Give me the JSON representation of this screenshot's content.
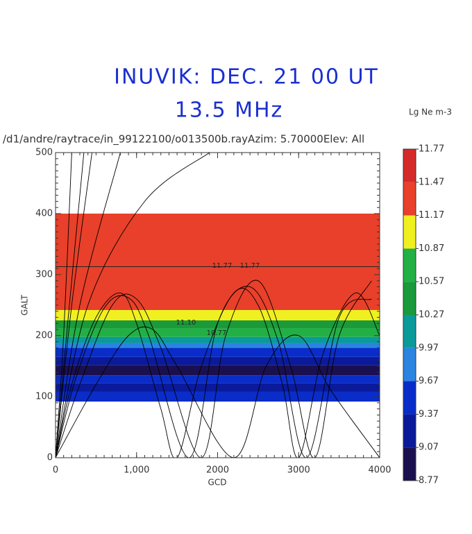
{
  "chart_data": {
    "type": "raytrace",
    "title": "INUVIK: DEC. 21  00 UT",
    "subtitle": "13.5 MHz",
    "header": "/d1/andre/raytrace/in_99122100/o013500b.rayAzim: 5.70000Elev: All",
    "colorbar_title": "Lg Ne m-3",
    "x_label": "GCD",
    "y_label": "GALT",
    "xlim": [
      0,
      4000
    ],
    "ylim": [
      0,
      500
    ],
    "xticks": [
      0,
      {
        "value": 1000,
        "label": "1,000"
      },
      2000,
      3000,
      4000
    ],
    "yticks": [
      0,
      100,
      200,
      300,
      400,
      500
    ],
    "colorbar": {
      "ticks": [
        8.77,
        9.07,
        9.37,
        9.67,
        9.97,
        10.27,
        10.57,
        10.87,
        11.17,
        11.47,
        11.77
      ],
      "colors": [
        "#1a1050",
        "#0a1a9a",
        "#0a2cc8",
        "#2a84e0",
        "#0a9a9a",
        "#1a9a3a",
        "#22b044",
        "#f0f020",
        "#e8402a",
        "#d42a2a"
      ]
    },
    "bands": [
      {
        "low": 92,
        "high": 108,
        "color": "#0a2cc8"
      },
      {
        "low": 108,
        "high": 122,
        "color": "#0a1a9a"
      },
      {
        "low": 122,
        "high": 135,
        "color": "#0a2cc8"
      },
      {
        "low": 135,
        "high": 152,
        "color": "#1a1050"
      },
      {
        "low": 152,
        "high": 165,
        "color": "#0a1a9a"
      },
      {
        "low": 165,
        "high": 180,
        "color": "#0a2cc8"
      },
      {
        "low": 180,
        "high": 188,
        "color": "#2a84e0"
      },
      {
        "low": 188,
        "high": 198,
        "color": "#0a9a9a"
      },
      {
        "low": 198,
        "high": 212,
        "color": "#22b044"
      },
      {
        "low": 212,
        "high": 225,
        "color": "#1a9a3a"
      },
      {
        "low": 225,
        "high": 242,
        "color": "#f0f020"
      },
      {
        "low": 242,
        "high": 400,
        "color": "#e8402a"
      }
    ],
    "contours": [
      313
    ],
    "annotations": [
      "11.77",
      "11.77",
      "11.10",
      "10.77"
    ],
    "rays": [
      {
        "x": [
          0,
          100,
          200
        ],
        "y": [
          0,
          200,
          500
        ]
      },
      {
        "x": [
          0,
          150,
          350
        ],
        "y": [
          0,
          220,
          500
        ]
      },
      {
        "x": [
          0,
          200,
          450
        ],
        "y": [
          0,
          250,
          500
        ]
      },
      {
        "x": [
          0,
          300,
          800
        ],
        "y": [
          0,
          250,
          500
        ]
      },
      {
        "x": [
          0,
          400,
          1100,
          1900
        ],
        "y": [
          0,
          250,
          420,
          500
        ]
      },
      {
        "x": [
          0,
          200,
          500,
          800,
          1000,
          1300,
          1500,
          1800,
          2200,
          2500,
          2800,
          3000,
          3300,
          3700,
          4000
        ],
        "y": [
          0,
          120,
          230,
          270,
          220,
          80,
          0,
          150,
          270,
          250,
          120,
          0,
          170,
          270,
          200
        ]
      },
      {
        "x": [
          0,
          300,
          700,
          1000,
          1300,
          1800,
          2100,
          2500,
          2900,
          3200,
          3500,
          3900
        ],
        "y": [
          0,
          120,
          250,
          260,
          180,
          0,
          200,
          290,
          150,
          0,
          200,
          290
        ]
      },
      {
        "x": [
          0,
          500,
          900,
          1200,
          1500,
          2200,
          2600,
          3000,
          3400,
          4000
        ],
        "y": [
          0,
          120,
          200,
          210,
          150,
          0,
          150,
          200,
          110,
          0
        ]
      },
      {
        "x": [
          0,
          250,
          600,
          900,
          1150,
          1650,
          2000,
          2400,
          2750,
          3100,
          3500,
          3900
        ],
        "y": [
          0,
          130,
          245,
          262,
          200,
          0,
          220,
          280,
          190,
          0,
          230,
          260
        ]
      }
    ]
  }
}
